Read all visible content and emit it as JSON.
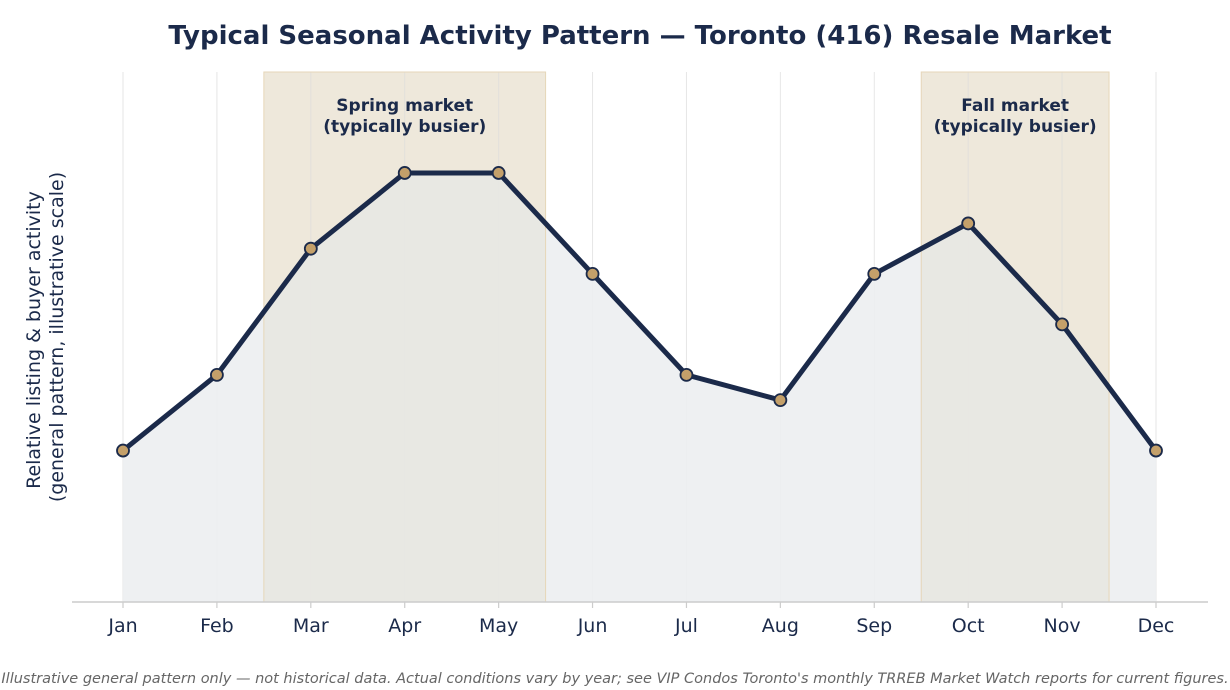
{
  "chart_data": {
    "type": "line",
    "title": "Typical Seasonal Activity Pattern — Toronto (416) Resale Market",
    "xlabel": "",
    "ylabel_lines": [
      "Relative listing & buyer activity",
      "(general pattern, illustrative scale)"
    ],
    "categories": [
      "Jan",
      "Feb",
      "Mar",
      "Apr",
      "May",
      "Jun",
      "Jul",
      "Aug",
      "Sep",
      "Oct",
      "Nov",
      "Dec"
    ],
    "series": [
      {
        "values": [
          30,
          45,
          70,
          85,
          85,
          65,
          45,
          40,
          65,
          75,
          55,
          30
        ]
      }
    ],
    "ylim": [
      0,
      105
    ],
    "y_ticks_shown": false,
    "grid": "vertical",
    "shaded_regions": [
      {
        "from": 1.5,
        "to": 4.5,
        "label_lines": [
          "Spring market",
          "(typically busier)"
        ]
      },
      {
        "from": 8.5,
        "to": 10.5,
        "label_lines": [
          "Fall market",
          "(typically busier)"
        ]
      }
    ],
    "footnote": "Illustrative general pattern only — not historical data. Actual conditions vary by year; see VIP Condos Toronto's monthly TRREB Market Watch reports for current figures.",
    "colors": {
      "line": "#1b2a4a",
      "marker_fill": "#c4a06a",
      "marker_edge": "#1b2a4a",
      "area_fill": "#eceef1",
      "band_fill": "#f4efe6",
      "grid": "#e6e6e6",
      "axis": "#cccccc"
    }
  }
}
